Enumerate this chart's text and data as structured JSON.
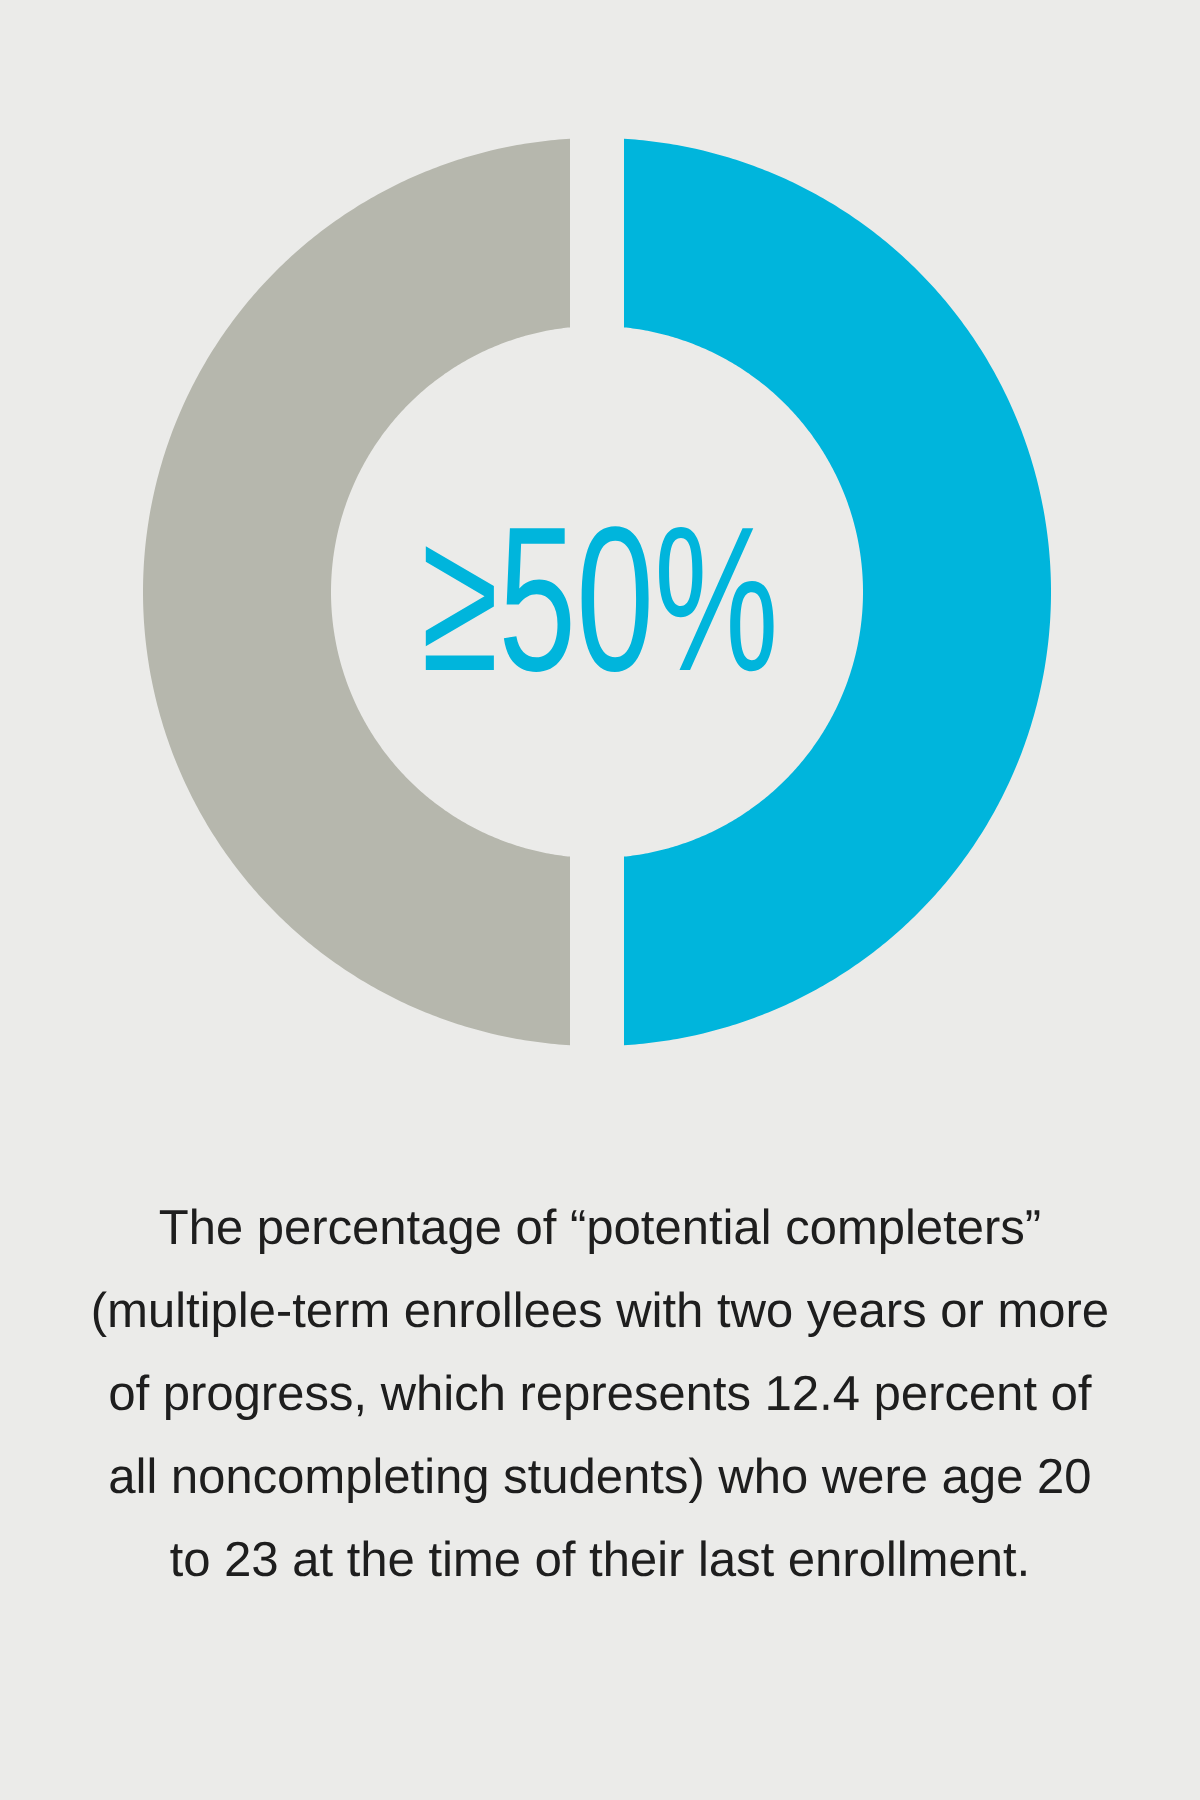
{
  "chart_data": {
    "type": "donut",
    "categories": [
      null,
      null
    ],
    "values": [
      50,
      50
    ],
    "colors": [
      "#00b5dc",
      "#b6b7ad"
    ],
    "annotations": [
      "≥50%",
      "The percentage of “potential completers” (multiple-term enrollees with two years or more of progress, which represents 12.4 percent of all noncompleting students) who were age 20 to 23 at the time of their last enrollment."
    ]
  }
}
